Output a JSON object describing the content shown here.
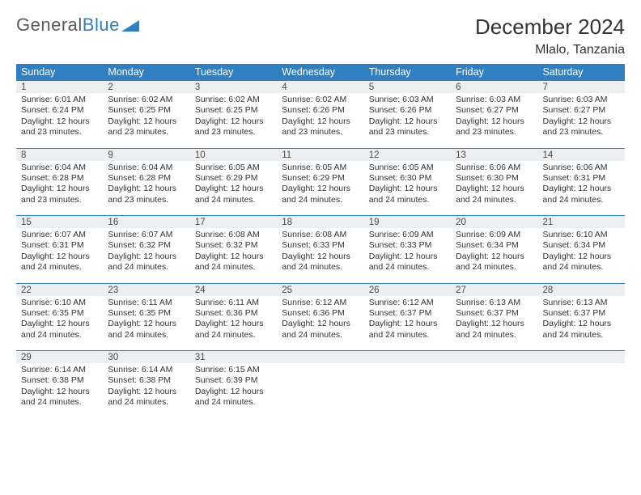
{
  "logo": {
    "text1": "General",
    "text2": "Blue"
  },
  "title": "December 2024",
  "location": "Mlalo, Tanzania",
  "colors": {
    "header_bg": "#2f7fc1",
    "header_text": "#ffffff",
    "daynum_bg": "#eceff1",
    "row_divider": "#2f7fc1",
    "body_text": "#333333",
    "logo_gray": "#5a5a5a",
    "logo_blue": "#2f7fc1"
  },
  "days_of_week": [
    "Sunday",
    "Monday",
    "Tuesday",
    "Wednesday",
    "Thursday",
    "Friday",
    "Saturday"
  ],
  "weeks": [
    [
      {
        "n": "1",
        "sr": "6:01 AM",
        "ss": "6:24 PM",
        "dh": "12",
        "dm": "23"
      },
      {
        "n": "2",
        "sr": "6:02 AM",
        "ss": "6:25 PM",
        "dh": "12",
        "dm": "23"
      },
      {
        "n": "3",
        "sr": "6:02 AM",
        "ss": "6:25 PM",
        "dh": "12",
        "dm": "23"
      },
      {
        "n": "4",
        "sr": "6:02 AM",
        "ss": "6:26 PM",
        "dh": "12",
        "dm": "23"
      },
      {
        "n": "5",
        "sr": "6:03 AM",
        "ss": "6:26 PM",
        "dh": "12",
        "dm": "23"
      },
      {
        "n": "6",
        "sr": "6:03 AM",
        "ss": "6:27 PM",
        "dh": "12",
        "dm": "23"
      },
      {
        "n": "7",
        "sr": "6:03 AM",
        "ss": "6:27 PM",
        "dh": "12",
        "dm": "23"
      }
    ],
    [
      {
        "n": "8",
        "sr": "6:04 AM",
        "ss": "6:28 PM",
        "dh": "12",
        "dm": "23"
      },
      {
        "n": "9",
        "sr": "6:04 AM",
        "ss": "6:28 PM",
        "dh": "12",
        "dm": "23"
      },
      {
        "n": "10",
        "sr": "6:05 AM",
        "ss": "6:29 PM",
        "dh": "12",
        "dm": "24"
      },
      {
        "n": "11",
        "sr": "6:05 AM",
        "ss": "6:29 PM",
        "dh": "12",
        "dm": "24"
      },
      {
        "n": "12",
        "sr": "6:05 AM",
        "ss": "6:30 PM",
        "dh": "12",
        "dm": "24"
      },
      {
        "n": "13",
        "sr": "6:06 AM",
        "ss": "6:30 PM",
        "dh": "12",
        "dm": "24"
      },
      {
        "n": "14",
        "sr": "6:06 AM",
        "ss": "6:31 PM",
        "dh": "12",
        "dm": "24"
      }
    ],
    [
      {
        "n": "15",
        "sr": "6:07 AM",
        "ss": "6:31 PM",
        "dh": "12",
        "dm": "24"
      },
      {
        "n": "16",
        "sr": "6:07 AM",
        "ss": "6:32 PM",
        "dh": "12",
        "dm": "24"
      },
      {
        "n": "17",
        "sr": "6:08 AM",
        "ss": "6:32 PM",
        "dh": "12",
        "dm": "24"
      },
      {
        "n": "18",
        "sr": "6:08 AM",
        "ss": "6:33 PM",
        "dh": "12",
        "dm": "24"
      },
      {
        "n": "19",
        "sr": "6:09 AM",
        "ss": "6:33 PM",
        "dh": "12",
        "dm": "24"
      },
      {
        "n": "20",
        "sr": "6:09 AM",
        "ss": "6:34 PM",
        "dh": "12",
        "dm": "24"
      },
      {
        "n": "21",
        "sr": "6:10 AM",
        "ss": "6:34 PM",
        "dh": "12",
        "dm": "24"
      }
    ],
    [
      {
        "n": "22",
        "sr": "6:10 AM",
        "ss": "6:35 PM",
        "dh": "12",
        "dm": "24"
      },
      {
        "n": "23",
        "sr": "6:11 AM",
        "ss": "6:35 PM",
        "dh": "12",
        "dm": "24"
      },
      {
        "n": "24",
        "sr": "6:11 AM",
        "ss": "6:36 PM",
        "dh": "12",
        "dm": "24"
      },
      {
        "n": "25",
        "sr": "6:12 AM",
        "ss": "6:36 PM",
        "dh": "12",
        "dm": "24"
      },
      {
        "n": "26",
        "sr": "6:12 AM",
        "ss": "6:37 PM",
        "dh": "12",
        "dm": "24"
      },
      {
        "n": "27",
        "sr": "6:13 AM",
        "ss": "6:37 PM",
        "dh": "12",
        "dm": "24"
      },
      {
        "n": "28",
        "sr": "6:13 AM",
        "ss": "6:37 PM",
        "dh": "12",
        "dm": "24"
      }
    ],
    [
      {
        "n": "29",
        "sr": "6:14 AM",
        "ss": "6:38 PM",
        "dh": "12",
        "dm": "24"
      },
      {
        "n": "30",
        "sr": "6:14 AM",
        "ss": "6:38 PM",
        "dh": "12",
        "dm": "24"
      },
      {
        "n": "31",
        "sr": "6:15 AM",
        "ss": "6:39 PM",
        "dh": "12",
        "dm": "24"
      },
      null,
      null,
      null,
      null
    ]
  ],
  "labels": {
    "sunrise": "Sunrise:",
    "sunset": "Sunset:",
    "daylight_prefix": "Daylight:",
    "hours_word": "hours",
    "and_word": "and",
    "minutes_word": "minutes."
  }
}
